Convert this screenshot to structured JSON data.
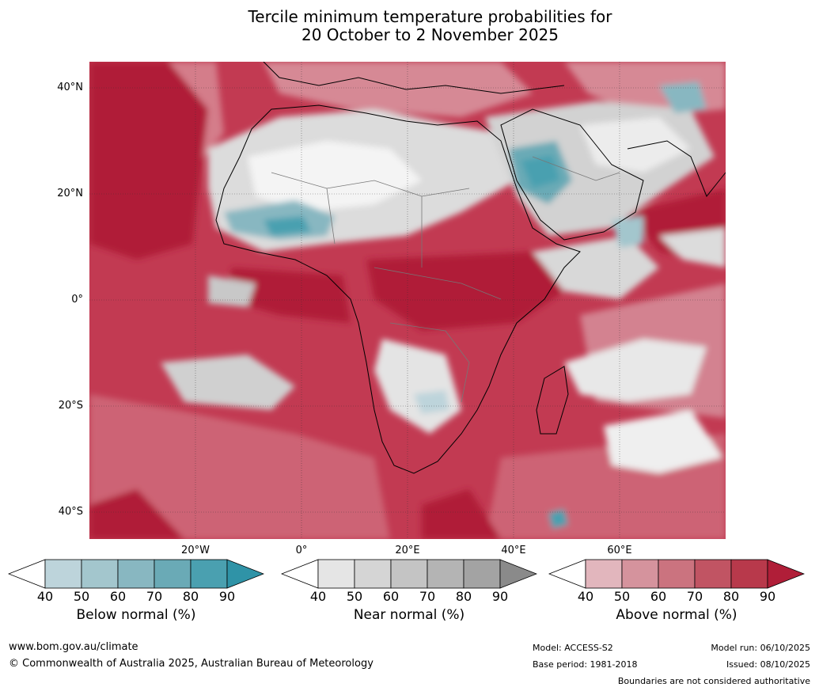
{
  "title": {
    "line1": "Tercile minimum temperature probabilities for",
    "line2": "20 October to 2 November 2025"
  },
  "map": {
    "lat_labels": [
      "40°N",
      "20°N",
      "0°",
      "20°S",
      "40°S"
    ],
    "lon_labels": [
      "20°W",
      "0°",
      "20°E",
      "40°E",
      "60°E"
    ]
  },
  "colorbars": [
    {
      "name": "below",
      "label": "Below normal (%)",
      "ticks": [
        "40",
        "50",
        "60",
        "70",
        "80",
        "90"
      ],
      "colors": [
        "#bdd4db",
        "#a3c6cd",
        "#88b7c1",
        "#6aaab6",
        "#4aa0b0"
      ],
      "over_color": "#2f93a7"
    },
    {
      "name": "near",
      "label": "Near normal (%)",
      "ticks": [
        "40",
        "50",
        "60",
        "70",
        "80",
        "90"
      ],
      "colors": [
        "#e5e5e5",
        "#d5d5d5",
        "#c4c4c4",
        "#b4b4b4",
        "#a3a3a3"
      ],
      "over_color": "#8a8a8a"
    },
    {
      "name": "above",
      "label": "Above normal (%)",
      "ticks": [
        "40",
        "50",
        "60",
        "70",
        "80",
        "90"
      ],
      "colors": [
        "#e2b6bd",
        "#d5939d",
        "#cb737f",
        "#c15463",
        "#b8394b"
      ],
      "over_color": "#b01e38"
    }
  ],
  "footer": {
    "website": "www.bom.gov.au/climate",
    "copyright": "© Commonwealth of Australia 2025, Australian Bureau of Meteorology",
    "model": "Model: ACCESS-S2",
    "base_period": "Base period: 1981-2018",
    "model_run": "Model run: 06/10/2025",
    "issued": "Issued: 08/10/2025",
    "disclaimer": "Boundaries are not considered authoritative"
  },
  "colors": {
    "ocean_above": "#c23a52",
    "deep_above": "#b01e38",
    "near_white": "#f2f2f2",
    "near_grey": "#cfcfcf",
    "below_teal": "#6aaab6"
  }
}
